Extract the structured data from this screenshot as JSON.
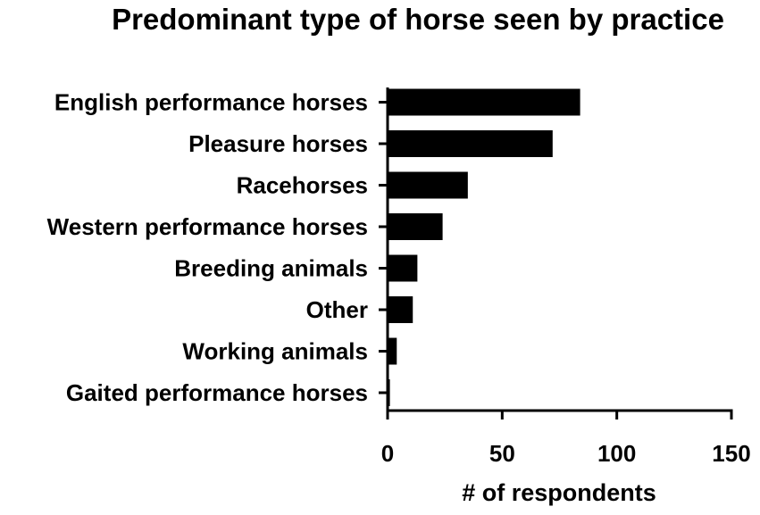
{
  "chart_data": {
    "type": "bar",
    "orientation": "horizontal",
    "title": "Predominant type of horse seen by practice",
    "xlabel": "# of respondents",
    "ylabel": "",
    "categories": [
      "English performance horses",
      "Pleasure horses",
      "Racehorses",
      "Western performance horses",
      "Breeding animals",
      "Other",
      "Working animals",
      "Gaited performance horses"
    ],
    "values": [
      84,
      72,
      35,
      24,
      13,
      11,
      4,
      1
    ],
    "xlim": [
      0,
      150
    ],
    "xticks": [
      0,
      50,
      100,
      150
    ],
    "grid": false,
    "legend": "none",
    "bar_color": "#000000"
  }
}
